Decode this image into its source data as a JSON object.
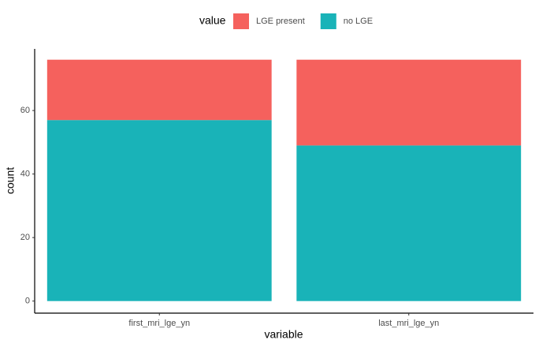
{
  "chart_data": {
    "type": "stacked_bar",
    "x_label": "variable",
    "y_label": "count",
    "legend_title": "value",
    "categories": [
      "first_mri_lge_yn",
      "last_mri_lge_yn"
    ],
    "series": [
      {
        "name": "LGE present",
        "color": "#F5615D",
        "values": [
          19,
          27
        ]
      },
      {
        "name": "no LGE",
        "color": "#19B3B8",
        "values": [
          57,
          49
        ]
      }
    ],
    "ylim": [
      -3.8,
      79.4
    ],
    "yticks": [
      0,
      20,
      40,
      60
    ],
    "legend": "top",
    "grid": false
  }
}
